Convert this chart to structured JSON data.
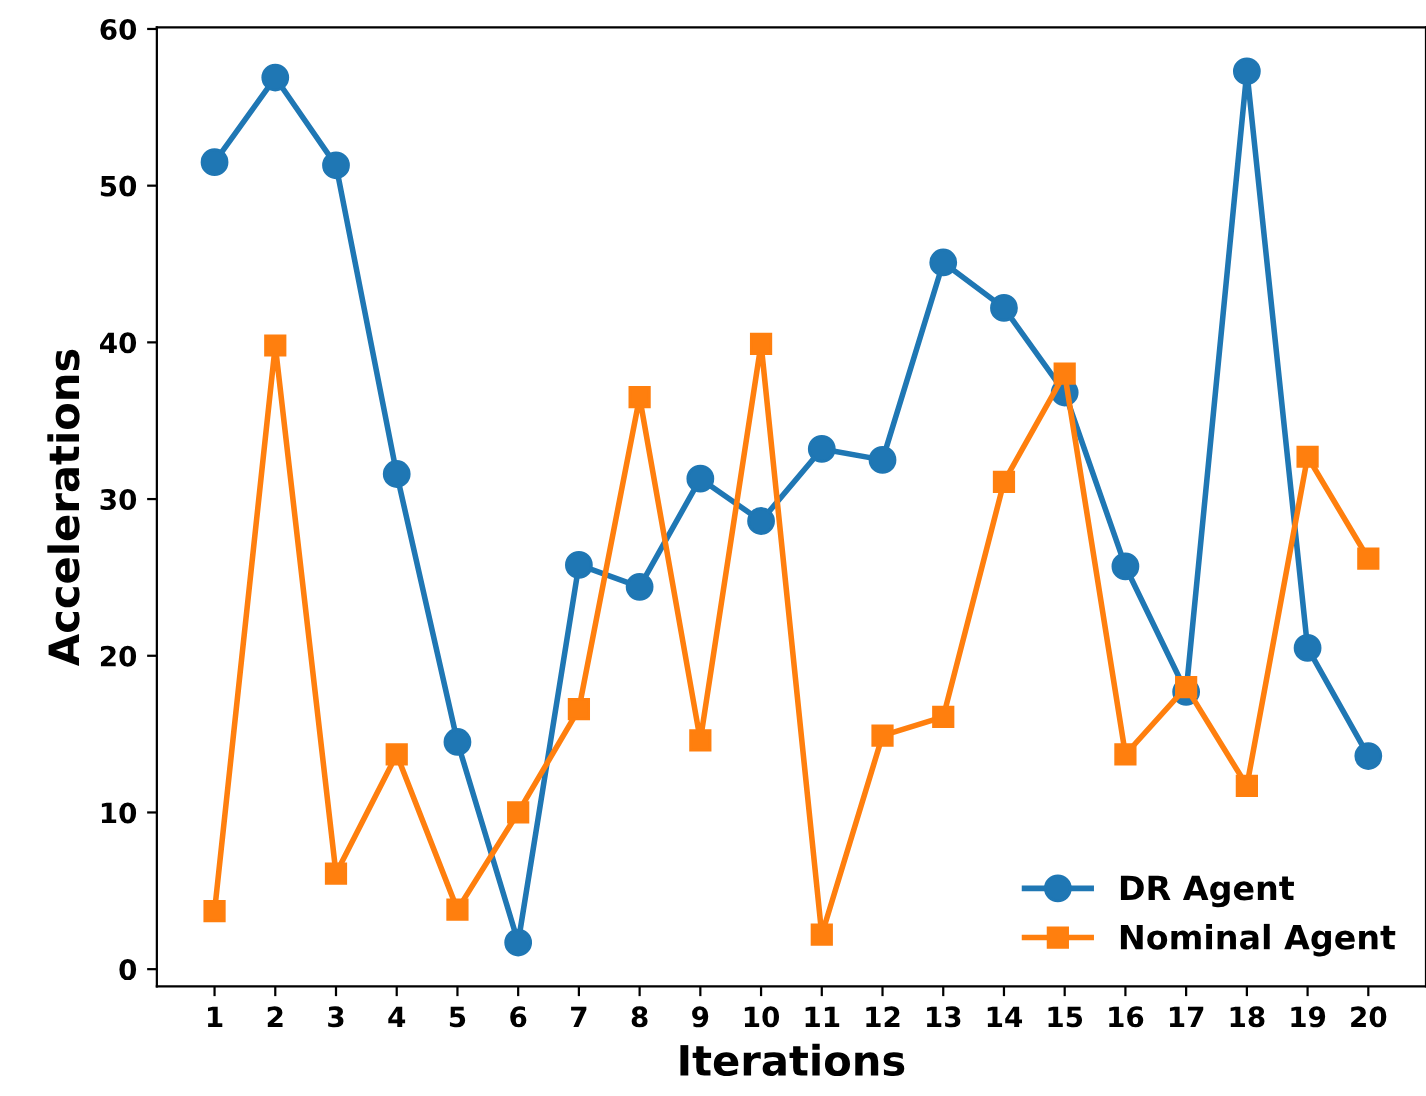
{
  "chart_data": {
    "type": "line",
    "xlabel": "Iterations",
    "ylabel": "Accelerations",
    "categories": [
      "1",
      "2",
      "3",
      "4",
      "5",
      "6",
      "7",
      "8",
      "9",
      "10",
      "11",
      "12",
      "13",
      "14",
      "15",
      "16",
      "17",
      "18",
      "19",
      "20"
    ],
    "series": [
      {
        "name": "DR Agent",
        "color": "#1f77b4",
        "marker": "circle",
        "values": [
          51.5,
          56.9,
          51.3,
          31.6,
          14.5,
          1.7,
          25.8,
          24.4,
          31.3,
          28.6,
          33.2,
          32.5,
          45.1,
          42.2,
          36.8,
          25.7,
          17.7,
          57.3,
          20.5,
          13.6
        ]
      },
      {
        "name": "Nominal Agent",
        "color": "#ff7f0e",
        "marker": "square",
        "values": [
          3.7,
          39.8,
          6.1,
          13.7,
          3.8,
          10.0,
          16.6,
          36.5,
          14.6,
          39.9,
          2.2,
          14.9,
          16.1,
          31.1,
          38.0,
          13.7,
          18.0,
          11.7,
          32.7,
          26.2
        ]
      }
    ],
    "ylim": [
      -1.1,
      60.1
    ],
    "yticks": [
      0,
      10,
      20,
      30,
      40,
      50,
      60
    ],
    "grid": false,
    "legend": "bottom right",
    "line_style": "solid"
  }
}
